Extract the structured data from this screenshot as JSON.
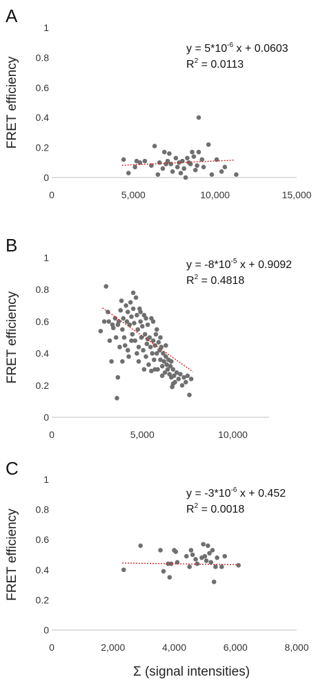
{
  "chart_data": [
    {
      "panel": "A",
      "type": "scatter",
      "ylabel": "FRET efficiency",
      "xlim": [
        0,
        15000
      ],
      "ylim": [
        0,
        1
      ],
      "xticks": [
        0,
        5000,
        10000,
        15000
      ],
      "xtick_labels": [
        "0",
        "5,000",
        "10,000",
        "15,000"
      ],
      "yticks": [
        0,
        0.2,
        0.4,
        0.6,
        0.8,
        1
      ],
      "ytick_labels": [
        "0",
        "0.2",
        "0.4",
        "0.6",
        "0.8",
        "1"
      ],
      "equation": {
        "y_lhs": "y = 5*10",
        "exp": "-6",
        "rhs": " x + 0.0603",
        "r2_lhs": "R",
        "r2_exp": "2",
        "r2_rhs": " = 0.0113"
      },
      "trendline": {
        "slope": 5e-06,
        "intercept": 0.0603,
        "x_range": [
          4300,
          11200
        ],
        "color": "#cc2222"
      },
      "points_color": "#6f6f6f",
      "points": [
        [
          4400,
          0.12
        ],
        [
          4700,
          0.03
        ],
        [
          5100,
          0.07
        ],
        [
          5200,
          0.11
        ],
        [
          5400,
          0.1
        ],
        [
          5700,
          0.11
        ],
        [
          6100,
          0.08
        ],
        [
          6300,
          0.21
        ],
        [
          6500,
          0.02
        ],
        [
          6600,
          0.1
        ],
        [
          6800,
          0.06
        ],
        [
          6900,
          0.17
        ],
        [
          7100,
          0.11
        ],
        [
          7200,
          0.16
        ],
        [
          7300,
          0.09
        ],
        [
          7400,
          0.04
        ],
        [
          7600,
          0.13
        ],
        [
          7700,
          0.07
        ],
        [
          7800,
          0.1
        ],
        [
          7900,
          0.03
        ],
        [
          8000,
          0.11
        ],
        [
          8100,
          0.06
        ],
        [
          8200,
          0.0
        ],
        [
          8300,
          0.13
        ],
        [
          8400,
          0.1
        ],
        [
          8500,
          0.09
        ],
        [
          8600,
          0.17
        ],
        [
          8700,
          0.14
        ],
        [
          8800,
          0.05
        ],
        [
          9000,
          0.4
        ],
        [
          9000,
          0.17
        ],
        [
          9200,
          0.12
        ],
        [
          9300,
          0.07
        ],
        [
          9600,
          0.22
        ],
        [
          9800,
          0.02
        ],
        [
          10100,
          0.12
        ],
        [
          10400,
          0.04
        ],
        [
          10600,
          0.07
        ],
        [
          11300,
          0.02
        ],
        [
          7000,
          0.09
        ],
        [
          8900,
          0.08
        ]
      ]
    },
    {
      "panel": "B",
      "type": "scatter",
      "ylabel": "FRET efficiency",
      "xlim": [
        0,
        12000
      ],
      "ylim": [
        0,
        1
      ],
      "xticks": [
        0,
        5000,
        10000
      ],
      "xtick_labels": [
        "0",
        "5,000",
        "10,000"
      ],
      "yticks": [
        0,
        0.2,
        0.4,
        0.6,
        0.8,
        1
      ],
      "ytick_labels": [
        "0",
        "0.2",
        "0.4",
        "0.6",
        "0.8",
        "1"
      ],
      "equation": {
        "y_lhs": "y = -8*10",
        "exp": "-5",
        "rhs": " x + 0.9092",
        "r2_lhs": "R",
        "r2_exp": "2",
        "r2_rhs": " = 0.4818"
      },
      "trendline": {
        "slope": -8e-05,
        "intercept": 0.9092,
        "x_range": [
          2800,
          7800
        ],
        "color": "#cc2222"
      },
      "points_color": "#6f6f6f",
      "points": [
        [
          2700,
          0.54
        ],
        [
          2900,
          0.6
        ],
        [
          3000,
          0.82
        ],
        [
          3100,
          0.66
        ],
        [
          3150,
          0.6
        ],
        [
          3200,
          0.48
        ],
        [
          3300,
          0.35
        ],
        [
          3350,
          0.58
        ],
        [
          3400,
          0.56
        ],
        [
          3500,
          0.62
        ],
        [
          3550,
          0.5
        ],
        [
          3600,
          0.12
        ],
        [
          3650,
          0.25
        ],
        [
          3700,
          0.6
        ],
        [
          3750,
          0.44
        ],
        [
          3800,
          0.67
        ],
        [
          3850,
          0.73
        ],
        [
          3900,
          0.55
        ],
        [
          3950,
          0.62
        ],
        [
          4000,
          0.5
        ],
        [
          4050,
          0.45
        ],
        [
          4100,
          0.7
        ],
        [
          4150,
          0.6
        ],
        [
          4200,
          0.66
        ],
        [
          4250,
          0.38
        ],
        [
          4300,
          0.58
        ],
        [
          4350,
          0.72
        ],
        [
          4400,
          0.63
        ],
        [
          4450,
          0.52
        ],
        [
          4500,
          0.78
        ],
        [
          4500,
          0.68
        ],
        [
          4550,
          0.59
        ],
        [
          4600,
          0.48
        ],
        [
          4650,
          0.75
        ],
        [
          4700,
          0.64
        ],
        [
          4750,
          0.55
        ],
        [
          4800,
          0.44
        ],
        [
          4850,
          0.68
        ],
        [
          4900,
          0.6
        ],
        [
          4950,
          0.5
        ],
        [
          5000,
          0.57
        ],
        [
          5050,
          0.42
        ],
        [
          5100,
          0.64
        ],
        [
          5150,
          0.52
        ],
        [
          5200,
          0.38
        ],
        [
          5250,
          0.46
        ],
        [
          5300,
          0.58
        ],
        [
          5350,
          0.33
        ],
        [
          5400,
          0.5
        ],
        [
          5450,
          0.44
        ],
        [
          5500,
          0.62
        ],
        [
          5550,
          0.4
        ],
        [
          5600,
          0.48
        ],
        [
          5650,
          0.36
        ],
        [
          5700,
          0.45
        ],
        [
          5750,
          0.52
        ],
        [
          5800,
          0.4
        ],
        [
          5850,
          0.3
        ],
        [
          5900,
          0.47
        ],
        [
          5950,
          0.42
        ],
        [
          6000,
          0.36
        ],
        [
          6050,
          0.44
        ],
        [
          6100,
          0.32
        ],
        [
          6150,
          0.4
        ],
        [
          6200,
          0.35
        ],
        [
          6250,
          0.28
        ],
        [
          6300,
          0.38
        ],
        [
          6350,
          0.33
        ],
        [
          6400,
          0.3
        ],
        [
          6450,
          0.36
        ],
        [
          6500,
          0.27
        ],
        [
          6550,
          0.32
        ],
        [
          6600,
          0.25
        ],
        [
          6650,
          0.19
        ],
        [
          6700,
          0.3
        ],
        [
          6750,
          0.26
        ],
        [
          6800,
          0.22
        ],
        [
          6900,
          0.28
        ],
        [
          7000,
          0.24
        ],
        [
          7100,
          0.27
        ],
        [
          7200,
          0.2
        ],
        [
          7300,
          0.25
        ],
        [
          7400,
          0.22
        ],
        [
          7500,
          0.26
        ],
        [
          7600,
          0.14
        ],
        [
          7700,
          0.24
        ],
        [
          5600,
          0.6
        ],
        [
          5300,
          0.49
        ],
        [
          4800,
          0.35
        ],
        [
          4200,
          0.42
        ],
        [
          6000,
          0.5
        ],
        [
          6300,
          0.45
        ],
        [
          5100,
          0.3
        ],
        [
          5800,
          0.55
        ],
        [
          6700,
          0.21
        ],
        [
          4700,
          0.4
        ],
        [
          3900,
          0.35
        ],
        [
          5200,
          0.62
        ],
        [
          6600,
          0.35
        ],
        [
          5500,
          0.29
        ],
        [
          6100,
          0.26
        ],
        [
          4400,
          0.48
        ],
        [
          3650,
          0.58
        ],
        [
          4900,
          0.66
        ],
        [
          5700,
          0.3
        ]
      ]
    },
    {
      "panel": "C",
      "type": "scatter",
      "ylabel": "FRET efficiency",
      "xlabel": "Σ (signal intensities)",
      "xlim": [
        0,
        8000
      ],
      "ylim": [
        0,
        1
      ],
      "xticks": [
        0,
        2000,
        4000,
        6000,
        8000
      ],
      "xtick_labels": [
        "0",
        "2,000",
        "4,000",
        "6,000",
        "8,000"
      ],
      "yticks": [
        0,
        0.2,
        0.4,
        0.6,
        0.8,
        1
      ],
      "ytick_labels": [
        "0",
        "0.2",
        "0.4",
        "0.6",
        "0.8",
        "1"
      ],
      "equation": {
        "y_lhs": "y = -3*10",
        "exp": "-6",
        "rhs": " x + 0.452",
        "r2_lhs": "R",
        "r2_exp": "2",
        "r2_rhs": " = 0.0018"
      },
      "trendline": {
        "slope": -3e-06,
        "intercept": 0.452,
        "x_range": [
          2300,
          6100
        ],
        "color": "#cc2222"
      },
      "points_color": "#6f6f6f",
      "points": [
        [
          2350,
          0.4
        ],
        [
          2900,
          0.56
        ],
        [
          3550,
          0.53
        ],
        [
          3650,
          0.39
        ],
        [
          3800,
          0.44
        ],
        [
          3850,
          0.35
        ],
        [
          3900,
          0.44
        ],
        [
          4000,
          0.53
        ],
        [
          4050,
          0.52
        ],
        [
          4100,
          0.45
        ],
        [
          4400,
          0.49
        ],
        [
          4500,
          0.42
        ],
        [
          4550,
          0.53
        ],
        [
          4700,
          0.47
        ],
        [
          4750,
          0.44
        ],
        [
          4900,
          0.48
        ],
        [
          4950,
          0.57
        ],
        [
          5000,
          0.49
        ],
        [
          5100,
          0.56
        ],
        [
          5150,
          0.51
        ],
        [
          5200,
          0.45
        ],
        [
          5250,
          0.53
        ],
        [
          5300,
          0.32
        ],
        [
          5350,
          0.42
        ],
        [
          5400,
          0.48
        ],
        [
          5550,
          0.42
        ],
        [
          5650,
          0.49
        ],
        [
          6100,
          0.43
        ],
        [
          4600,
          0.5
        ],
        [
          5050,
          0.46
        ]
      ]
    }
  ]
}
